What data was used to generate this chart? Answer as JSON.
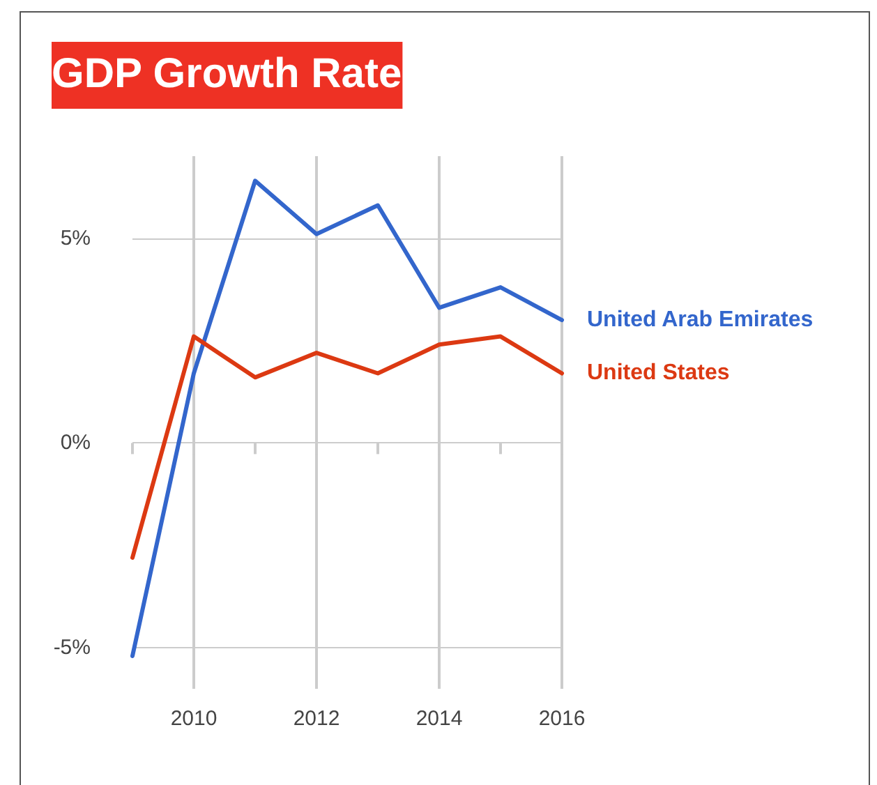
{
  "chart_data": {
    "type": "line",
    "title": "GDP Growth Rate",
    "x": [
      2009,
      2010,
      2011,
      2012,
      2013,
      2014,
      2015,
      2016
    ],
    "series": [
      {
        "name": "United Arab Emirates",
        "color": "#3366cc",
        "values": [
          -5.2,
          1.7,
          6.4,
          5.1,
          5.8,
          3.3,
          3.8,
          3.0
        ]
      },
      {
        "name": "United States",
        "color": "#dc3912",
        "values": [
          -2.8,
          2.6,
          1.6,
          2.2,
          1.7,
          2.4,
          2.6,
          1.7
        ]
      }
    ],
    "xlim": [
      2009,
      2016
    ],
    "xticks": [
      {
        "value": 2009,
        "label": null
      },
      2010,
      {
        "value": 2011,
        "label": null
      },
      2012,
      {
        "value": 2013,
        "label": null
      },
      2014,
      {
        "value": 2015,
        "label": null
      },
      2016
    ],
    "ylim": [
      -6,
      7
    ],
    "yticks": [
      {
        "value": -5,
        "label": "-5%"
      },
      {
        "value": 0,
        "label": "0%"
      },
      {
        "value": 5,
        "label": "5%"
      }
    ],
    "grid": true,
    "legend": "right",
    "marker": "none",
    "line_style": "solid"
  }
}
